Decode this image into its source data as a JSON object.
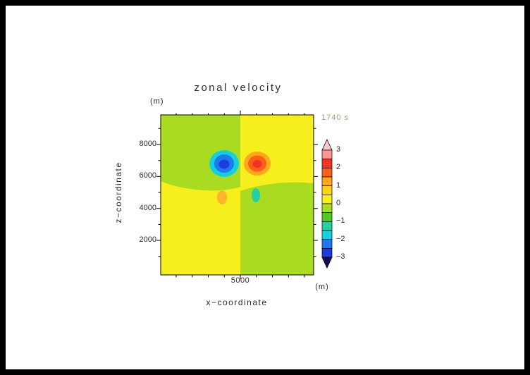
{
  "header": {
    "title": "zonal velocity",
    "time_label": "1740 s",
    "time_color": "#a49c80"
  },
  "axes": {
    "y_unit_label": "(m)",
    "x_unit_label": "(m)",
    "xlabel": "x−coordinate",
    "ylabel": "z−coordinate",
    "x_ticks": [
      "5000"
    ],
    "y_ticks": [
      "8000",
      "6000",
      "4000",
      "2000"
    ]
  },
  "chart_data": {
    "type": "heatmap",
    "title": "zonal velocity",
    "time": "1740 s",
    "xlabel": "x-coordinate (m)",
    "ylabel": "z-coordinate (m)",
    "x_range_m": [
      0,
      9600
    ],
    "z_range_m": [
      0,
      9800
    ],
    "x_ticks_m": [
      5000
    ],
    "z_ticks_m": [
      2000,
      4000,
      6000,
      8000
    ],
    "colorbar": {
      "labels_top_to_bottom": [
        "3",
        "2",
        "1",
        "0",
        "−1",
        "−2",
        "−3"
      ],
      "levels": [
        -3,
        -2.5,
        -2,
        -1.5,
        -1,
        -0.5,
        0,
        0.5,
        1,
        1.5,
        2,
        2.5,
        3
      ],
      "band_colors_top_to_bottom": [
        "#ff9696",
        "#f03228",
        "#ff5f14",
        "#ffa81e",
        "#ffd21e",
        "#f6ee1d",
        "#a9dc21",
        "#50c828",
        "#23d2a0",
        "#17cfdc",
        "#1e78f0",
        "#1e3cdc"
      ],
      "over_color": "#ffc8c8",
      "under_color": "#10105a"
    },
    "palette": {
      "yellow": "#f6ee1d",
      "green": "#a9dc21",
      "cyan": "#17cfdc",
      "blue": "#1e78f0",
      "dark_blue": "#1e3cdc",
      "orange": "#ffa81e",
      "orange_red": "#ff5f14",
      "red": "#f03228",
      "small_orange": "#ffb42d",
      "teal": "#23d2a0"
    },
    "features": {
      "quadrants": [
        {
          "position": "upper-left",
          "value_range": "-0.5 to 0",
          "color": "#a9dc21"
        },
        {
          "position": "upper-right",
          "value_range": "0 to 0.5",
          "color": "#f6ee1d"
        },
        {
          "position": "lower-left",
          "value_range": "0 to 0.5",
          "color": "#f6ee1d"
        },
        {
          "position": "lower-right",
          "value_range": "-0.5 to 0",
          "color": "#a9dc21"
        }
      ],
      "extrema": [
        {
          "name": "negative core",
          "x_m": 4500,
          "z_m": 6800,
          "approx_value": -3
        },
        {
          "name": "positive core",
          "x_m": 5400,
          "z_m": 6800,
          "approx_value": 2.5
        },
        {
          "name": "secondary positive",
          "x_m": 4400,
          "z_m": 4800,
          "approx_value": 1.2
        },
        {
          "name": "secondary negative",
          "x_m": 5400,
          "z_m": 4900,
          "approx_value": -1.2
        }
      ]
    }
  }
}
